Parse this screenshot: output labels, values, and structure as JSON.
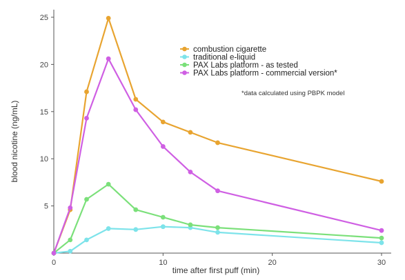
{
  "chart_data": {
    "type": "line",
    "title": "",
    "xlabel": "time after first puff (min)",
    "ylabel": "blood nicotine (ng/mL)",
    "xlim": [
      0,
      30
    ],
    "ylim": [
      0,
      25
    ],
    "xticks": [
      0,
      10,
      20,
      30
    ],
    "yticks": [
      5,
      10,
      15,
      20,
      25
    ],
    "grid": false,
    "legend_position": "top-right",
    "note": "*data calculated using PBPK model",
    "series": [
      {
        "name": "combustion cigarette",
        "color": "#e8a430",
        "x": [
          0,
          1.5,
          3,
          5,
          7.5,
          10,
          12.5,
          15,
          30
        ],
        "y": [
          0,
          4.6,
          17.1,
          24.9,
          16.3,
          13.9,
          12.8,
          11.7,
          7.6
        ]
      },
      {
        "name": "traditional e-liquid",
        "color": "#7de3ea",
        "x": [
          0,
          1.5,
          3,
          5,
          7.5,
          10,
          12.5,
          15,
          30
        ],
        "y": [
          0,
          0.2,
          1.4,
          2.6,
          2.5,
          2.8,
          2.7,
          2.2,
          1.1
        ]
      },
      {
        "name": "PAX Labs platform - as tested",
        "color": "#7be07a",
        "x": [
          0,
          1.5,
          3,
          5,
          7.5,
          10,
          12.5,
          15,
          30
        ],
        "y": [
          0,
          1.4,
          5.7,
          7.3,
          4.6,
          3.8,
          3.0,
          2.7,
          1.6
        ]
      },
      {
        "name": "PAX Labs platform - commercial version*",
        "color": "#cf5fe3",
        "x": [
          0,
          1.5,
          3,
          5,
          7.5,
          10,
          12.5,
          15,
          30
        ],
        "y": [
          0,
          4.8,
          14.3,
          20.6,
          15.2,
          11.3,
          8.6,
          6.6,
          2.4
        ]
      }
    ]
  }
}
